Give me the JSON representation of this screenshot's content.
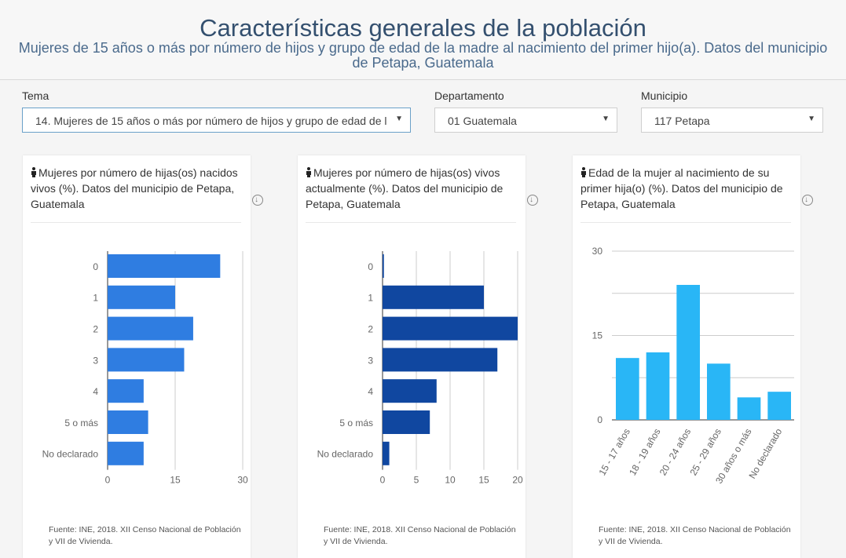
{
  "header": {
    "title": "Características generales de la población",
    "subtitle": "Mujeres de 15 años o más por número de hijos y grupo de edad de la madre al nacimiento del primer hijo(a). Datos del municipio de Petapa, Guatemala"
  },
  "filters": {
    "tema": {
      "label": "Tema",
      "value": "14. Mujeres de 15 años o más por número de hijos y grupo de edad de l"
    },
    "departamento": {
      "label": "Departamento",
      "value": "01 Guatemala"
    },
    "municipio": {
      "label": "Municipio",
      "value": "117 Petapa"
    }
  },
  "cards": [
    {
      "title": "Mujeres por número de hijas(os) nacidos vivos (%). Datos del municipio de Petapa, Guatemala",
      "source": "Fuente: INE, 2018. XII Censo Nacional de Población y VII de Vivienda."
    },
    {
      "title": "Mujeres por número de hijas(os) vivos actualmente (%). Datos del municipio de Petapa, Guatemala",
      "source": "Fuente: INE, 2018. XII Censo Nacional de Población y VII de Vivienda."
    },
    {
      "title": "Edad de la mujer al nacimiento de su primer hija(o) (%). Datos del municipio de Petapa, Guatemala",
      "source": "Fuente: INE, 2018. XII Censo Nacional de Población y VII de Vivienda."
    }
  ],
  "colors": {
    "chart1": "#2f7de1",
    "chart2": "#1047a0",
    "chart3": "#29b6f6"
  },
  "chart_data": [
    {
      "type": "bar",
      "orientation": "horizontal",
      "categories": [
        "0",
        "1",
        "2",
        "3",
        "4",
        "5 o más",
        "No declarado"
      ],
      "values": [
        25,
        15,
        19,
        17,
        8,
        9,
        8
      ],
      "xlim": [
        0,
        30
      ],
      "xticks": [
        0,
        15,
        30
      ],
      "grid": true
    },
    {
      "type": "bar",
      "orientation": "horizontal",
      "categories": [
        "0",
        "1",
        "2",
        "3",
        "4",
        "5 o más",
        "No declarado"
      ],
      "values": [
        0.2,
        15,
        20,
        17,
        8,
        7,
        1
      ],
      "xlim": [
        0,
        20
      ],
      "xticks": [
        0,
        5,
        10,
        15,
        20
      ],
      "grid": true
    },
    {
      "type": "bar",
      "orientation": "vertical",
      "categories": [
        "15 - 17 años",
        "18 - 19 años",
        "20 - 24 años",
        "25 - 29 años",
        "30 años o más",
        "No declarado"
      ],
      "values": [
        11,
        12,
        24,
        10,
        4,
        5
      ],
      "ylim": [
        0,
        30
      ],
      "yticks": [
        0,
        15,
        30
      ],
      "grid": true
    }
  ]
}
